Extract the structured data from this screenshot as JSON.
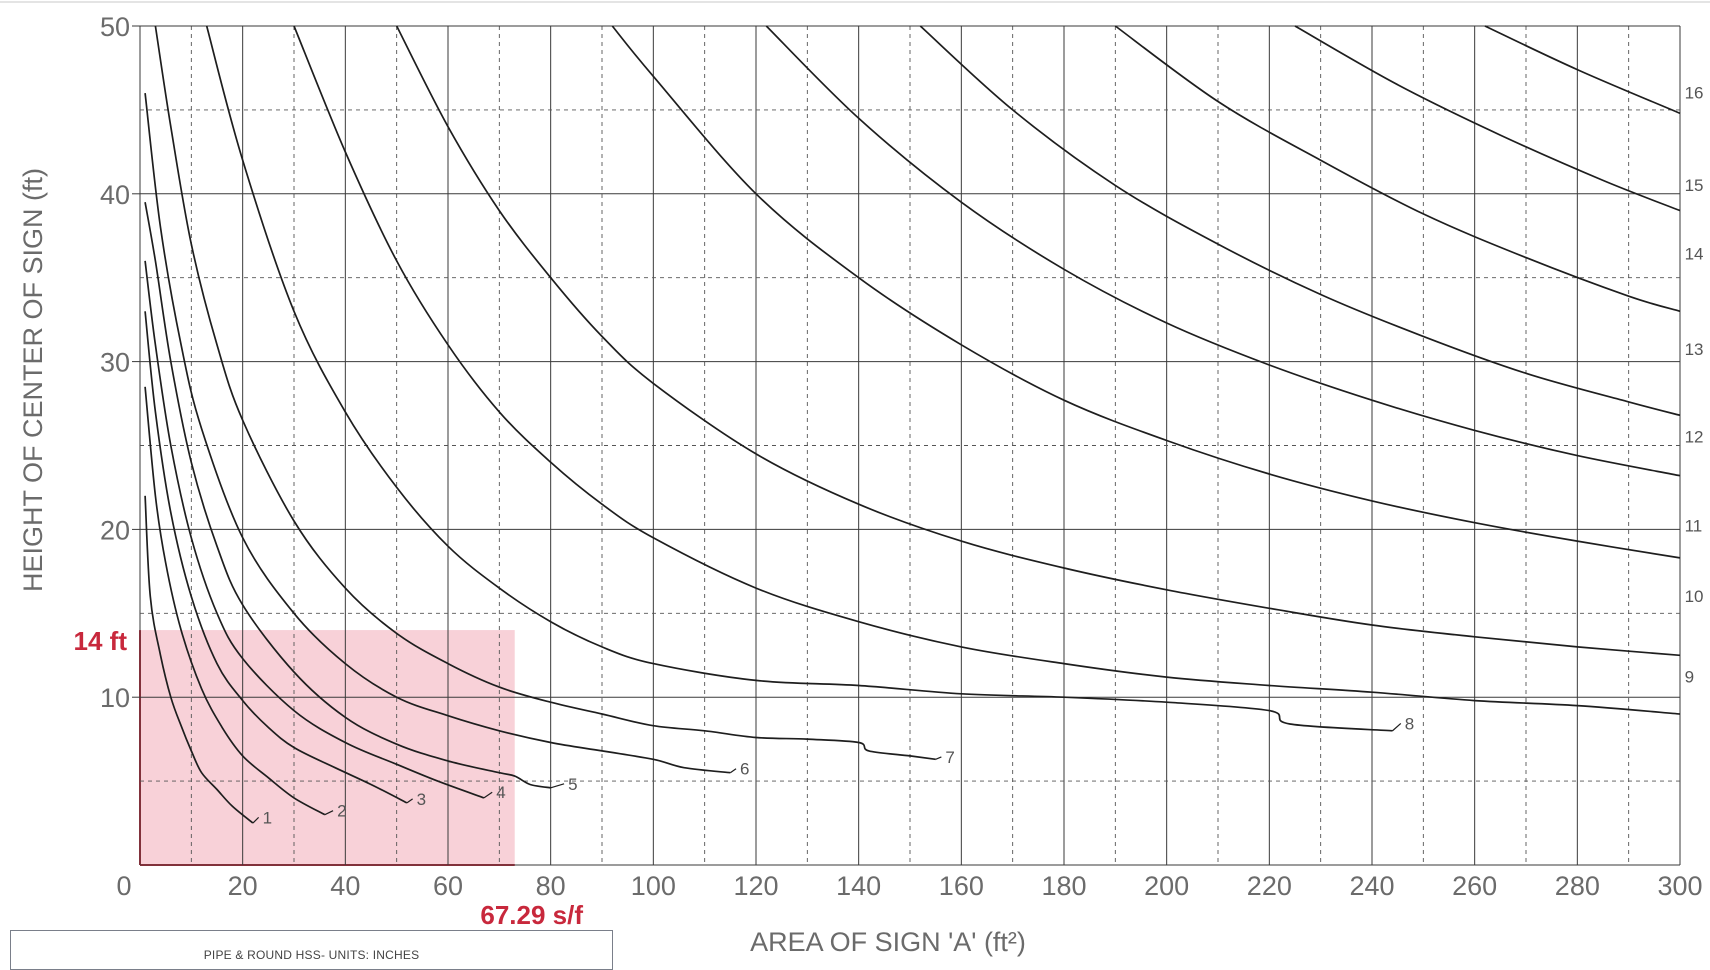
{
  "chart_data": {
    "type": "line",
    "xlabel": "AREA OF SIGN 'A' (ft²)",
    "ylabel": "HEIGHT OF CENTER OF SIGN (ft)",
    "xlim": [
      0,
      300
    ],
    "ylim": [
      0,
      50
    ],
    "x_ticks": [
      "0",
      "20",
      "40",
      "60",
      "80",
      "100",
      "120",
      "140",
      "160",
      "180",
      "200",
      "220",
      "240",
      "260",
      "280",
      "300"
    ],
    "y_ticks": [
      "10",
      "20",
      "30",
      "40",
      "50"
    ],
    "grid": true,
    "series": [
      {
        "name": "1",
        "points": [
          [
            1,
            22
          ],
          [
            2,
            16
          ],
          [
            4,
            12.5
          ],
          [
            6,
            10
          ],
          [
            8,
            8.3
          ],
          [
            10,
            6.8
          ],
          [
            12,
            5.5
          ],
          [
            15,
            4.5
          ],
          [
            18,
            3.5
          ],
          [
            22,
            2.5
          ]
        ]
      },
      {
        "name": "2",
        "points": [
          [
            1,
            28.5
          ],
          [
            3,
            22
          ],
          [
            5,
            18
          ],
          [
            8,
            14
          ],
          [
            12,
            10.5
          ],
          [
            16,
            8.2
          ],
          [
            20,
            6.5
          ],
          [
            25,
            5.2
          ],
          [
            30,
            4
          ],
          [
            36,
            3
          ]
        ]
      },
      {
        "name": "3",
        "points": [
          [
            1,
            33
          ],
          [
            3,
            27
          ],
          [
            6,
            21
          ],
          [
            10,
            16
          ],
          [
            15,
            12
          ],
          [
            20,
            9.8
          ],
          [
            25,
            8.2
          ],
          [
            30,
            7
          ],
          [
            38,
            5.8
          ],
          [
            45,
            4.8
          ],
          [
            52,
            3.7
          ]
        ]
      },
      {
        "name": "4",
        "points": [
          [
            1,
            36
          ],
          [
            3,
            31
          ],
          [
            6,
            25
          ],
          [
            10,
            19.5
          ],
          [
            15,
            15
          ],
          [
            20,
            12.3
          ],
          [
            30,
            9.2
          ],
          [
            40,
            7.3
          ],
          [
            50,
            6
          ],
          [
            58,
            5
          ],
          [
            67,
            4
          ]
        ]
      },
      {
        "name": "5",
        "points": [
          [
            1,
            39.5
          ],
          [
            3,
            36
          ],
          [
            6,
            30
          ],
          [
            10,
            24
          ],
          [
            15,
            19
          ],
          [
            20,
            15.5
          ],
          [
            30,
            11.5
          ],
          [
            40,
            8.8
          ],
          [
            50,
            7.2
          ],
          [
            60,
            6.2
          ],
          [
            70,
            5.5
          ],
          [
            73,
            5.3
          ],
          [
            76,
            4.8
          ],
          [
            80,
            4.6
          ]
        ]
      },
      {
        "name": "6",
        "points": [
          [
            1,
            46
          ],
          [
            4,
            38
          ],
          [
            8,
            31
          ],
          [
            12,
            26
          ],
          [
            20,
            19.5
          ],
          [
            30,
            15
          ],
          [
            40,
            12
          ],
          [
            50,
            10
          ],
          [
            60,
            8.9
          ],
          [
            70,
            8
          ],
          [
            80,
            7.3
          ],
          [
            90,
            6.8
          ],
          [
            100,
            6.3
          ],
          [
            106,
            5.8
          ],
          [
            115,
            5.5
          ]
        ]
      },
      {
        "name": "7",
        "points": [
          [
            3,
            50
          ],
          [
            6,
            44
          ],
          [
            10,
            37
          ],
          [
            15,
            31
          ],
          [
            20,
            26.5
          ],
          [
            30,
            20.5
          ],
          [
            40,
            16.5
          ],
          [
            50,
            13.8
          ],
          [
            60,
            12
          ],
          [
            70,
            10.6
          ],
          [
            80,
            9.7
          ],
          [
            90,
            9
          ],
          [
            100,
            8.3
          ],
          [
            110,
            8
          ],
          [
            120,
            7.6
          ],
          [
            130,
            7.5
          ],
          [
            140,
            7.3
          ],
          [
            142,
            6.8
          ],
          [
            150,
            6.5
          ],
          [
            155,
            6.3
          ]
        ]
      },
      {
        "name": "8",
        "points": [
          [
            13,
            50
          ],
          [
            20,
            42
          ],
          [
            30,
            33
          ],
          [
            40,
            27
          ],
          [
            50,
            22.5
          ],
          [
            60,
            19
          ],
          [
            70,
            16.5
          ],
          [
            80,
            14.5
          ],
          [
            90,
            13
          ],
          [
            100,
            12
          ],
          [
            120,
            11
          ],
          [
            140,
            10.7
          ],
          [
            160,
            10.2
          ],
          [
            180,
            10
          ],
          [
            200,
            9.7
          ],
          [
            220,
            9.2
          ],
          [
            224,
            8.4
          ],
          [
            244,
            8
          ]
        ]
      },
      {
        "name": "9",
        "points": [
          [
            30,
            50
          ],
          [
            40,
            42.5
          ],
          [
            50,
            36
          ],
          [
            60,
            31
          ],
          [
            70,
            27
          ],
          [
            80,
            24
          ],
          [
            90,
            21.5
          ],
          [
            100,
            19.5
          ],
          [
            120,
            16.5
          ],
          [
            140,
            14.5
          ],
          [
            160,
            13
          ],
          [
            180,
            12
          ],
          [
            200,
            11.2
          ],
          [
            220,
            10.7
          ],
          [
            240,
            10.3
          ],
          [
            260,
            9.8
          ],
          [
            280,
            9.5
          ],
          [
            300,
            9
          ]
        ]
      },
      {
        "name": "10",
        "points": [
          [
            50,
            50
          ],
          [
            60,
            44
          ],
          [
            70,
            39
          ],
          [
            80,
            35
          ],
          [
            90,
            31.5
          ],
          [
            100,
            28.7
          ],
          [
            120,
            24.5
          ],
          [
            140,
            21.5
          ],
          [
            160,
            19.3
          ],
          [
            180,
            17.7
          ],
          [
            200,
            16.4
          ],
          [
            220,
            15.3
          ],
          [
            240,
            14.3
          ],
          [
            260,
            13.6
          ],
          [
            280,
            13
          ],
          [
            300,
            12.5
          ]
        ]
      },
      {
        "name": "11",
        "points": [
          [
            92,
            50
          ],
          [
            100,
            47
          ],
          [
            120,
            40
          ],
          [
            140,
            35
          ],
          [
            160,
            31
          ],
          [
            180,
            27.7
          ],
          [
            200,
            25.3
          ],
          [
            220,
            23.3
          ],
          [
            240,
            21.7
          ],
          [
            260,
            20.4
          ],
          [
            280,
            19.3
          ],
          [
            300,
            18.3
          ]
        ]
      },
      {
        "name": "12",
        "points": [
          [
            122,
            50
          ],
          [
            140,
            44.5
          ],
          [
            160,
            39.5
          ],
          [
            180,
            35.5
          ],
          [
            200,
            32.3
          ],
          [
            220,
            29.8
          ],
          [
            240,
            27.7
          ],
          [
            260,
            25.9
          ],
          [
            280,
            24.4
          ],
          [
            300,
            23.2
          ]
        ]
      },
      {
        "name": "13",
        "points": [
          [
            152,
            50
          ],
          [
            170,
            45
          ],
          [
            190,
            40.5
          ],
          [
            210,
            37
          ],
          [
            230,
            34
          ],
          [
            250,
            31.5
          ],
          [
            270,
            29.3
          ],
          [
            290,
            27.6
          ],
          [
            300,
            26.8
          ]
        ]
      },
      {
        "name": "14",
        "points": [
          [
            190,
            50
          ],
          [
            210,
            45.5
          ],
          [
            230,
            42
          ],
          [
            250,
            38.8
          ],
          [
            270,
            36.2
          ],
          [
            290,
            33.9
          ],
          [
            300,
            33
          ]
        ]
      },
      {
        "name": "15",
        "points": [
          [
            225,
            50
          ],
          [
            245,
            46.5
          ],
          [
            265,
            43.5
          ],
          [
            285,
            40.8
          ],
          [
            300,
            39
          ]
        ]
      },
      {
        "name": "16",
        "points": [
          [
            262,
            50
          ],
          [
            280,
            47.4
          ],
          [
            300,
            44.8
          ]
        ]
      }
    ],
    "curve_label_positions_data": [
      [
        23.5,
        2.6
      ],
      [
        38,
        3
      ],
      [
        53.5,
        3.7
      ],
      [
        69,
        4.1
      ],
      [
        83,
        4.6
      ],
      [
        116.5,
        5.5
      ],
      [
        156.5,
        6.2
      ],
      [
        246,
        8.2
      ],
      [
        300.5,
        11
      ],
      [
        300.5,
        15.8
      ],
      [
        300.5,
        20
      ],
      [
        300.5,
        25.3
      ],
      [
        300.5,
        30.5
      ],
      [
        300.5,
        36.2
      ],
      [
        300.5,
        40.3
      ],
      [
        300.5,
        45.8
      ]
    ],
    "highlight_region": {
      "x": [
        0,
        73
      ],
      "y": [
        0,
        14
      ],
      "color": "#f7c9d1"
    },
    "annotations": {
      "height_label": "14 ft",
      "area_label": "67.29 s/f",
      "color": "#c8283c"
    }
  },
  "legend_box": {
    "title": "PIPE & ROUND HSS- UNITS: INCHES"
  }
}
